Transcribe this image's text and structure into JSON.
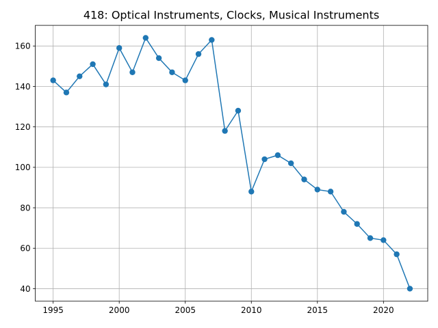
{
  "chart_data": {
    "type": "line",
    "title": "418: Optical Instruments, Clocks, Musical Instruments",
    "xlabel": "",
    "ylabel": "",
    "xlim": [
      1993.65,
      2023.35
    ],
    "ylim": [
      33.8,
      170.2
    ],
    "xticks": [
      1995,
      2000,
      2005,
      2010,
      2015,
      2020
    ],
    "yticks": [
      40,
      60,
      80,
      100,
      120,
      140,
      160
    ],
    "grid": true,
    "legend": "none",
    "series": [
      {
        "color": "#1f77b4",
        "marker": "circle",
        "x": [
          1995,
          1996,
          1997,
          1998,
          1999,
          2000,
          2001,
          2002,
          2003,
          2004,
          2005,
          2006,
          2007,
          2008,
          2009,
          2010,
          2011,
          2012,
          2013,
          2014,
          2015,
          2016,
          2017,
          2018,
          2019,
          2020,
          2021,
          2022
        ],
        "y": [
          143,
          137,
          145,
          151,
          141,
          159,
          147,
          164,
          154,
          147,
          143,
          156,
          163,
          118,
          128,
          88,
          104,
          106,
          102,
          94,
          89,
          88,
          78,
          72,
          65,
          64,
          57,
          40
        ]
      }
    ]
  }
}
